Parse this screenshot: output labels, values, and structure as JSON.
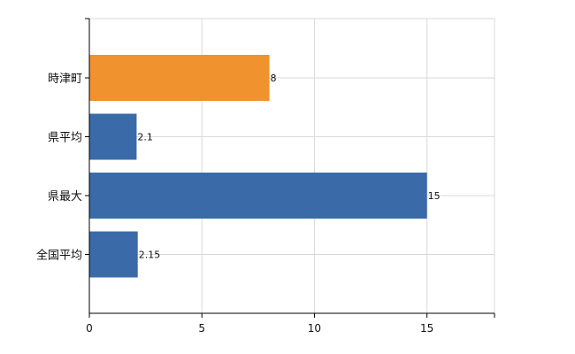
{
  "chart_data": {
    "type": "bar",
    "orientation": "horizontal",
    "categories": [
      "時津町",
      "県平均",
      "県最大",
      "全国平均"
    ],
    "values": [
      8,
      2.1,
      15,
      2.15
    ],
    "data_labels": [
      "8",
      "2.1",
      "15",
      "2.15"
    ],
    "xlim": [
      0,
      18
    ],
    "x_ticks": [
      0,
      5,
      10,
      15
    ],
    "grid": true,
    "legend": "none",
    "highlight_category": "時津町",
    "colors": {
      "highlight": "#F0922E",
      "default": "#3A6BA8",
      "grid": "#d9d9d9",
      "axis": "#000000"
    }
  }
}
